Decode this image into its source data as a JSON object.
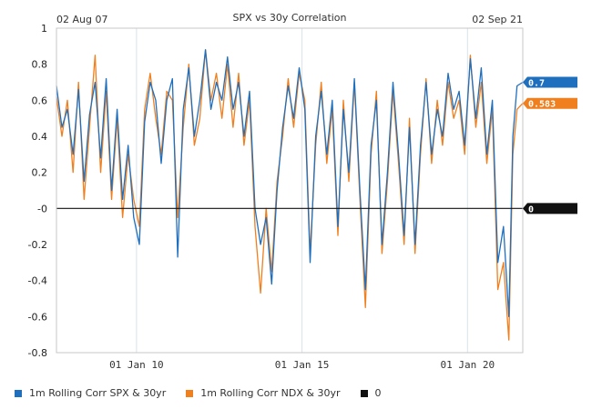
{
  "chart_data": {
    "type": "line",
    "title": "SPX vs 30y Correlation",
    "start_label": "02 Aug 07",
    "end_label": "02 Sep 21",
    "x_range": [
      "2007-08-02",
      "2021-09-02"
    ],
    "x_ticks": [
      {
        "date": "2010-01-01",
        "label": "01 Jan 10"
      },
      {
        "date": "2015-01-01",
        "label": "01 Jan 15"
      },
      {
        "date": "2020-01-01",
        "label": "01 Jan 20"
      }
    ],
    "y_ticks": [
      "1",
      "0.8",
      "0.6",
      "0.4",
      "0.2",
      "-0",
      "-0.2",
      "-0.4",
      "-0.6",
      "-0.8"
    ],
    "ylim": [
      -0.8,
      1.0
    ],
    "grid": "vertical at x ticks",
    "legend_position": "bottom",
    "colors": {
      "spx": "#1f6fbf",
      "ndx": "#f07f1e",
      "zero": "#111111"
    },
    "series": [
      {
        "name": "1m Rolling Corr SPX & 30yr",
        "color": "#1f6fbf",
        "last_label": "0.7",
        "points": [
          [
            "2007-08-02",
            0.68
          ],
          [
            "2007-10-01",
            0.45
          ],
          [
            "2007-12-01",
            0.55
          ],
          [
            "2008-02-01",
            0.3
          ],
          [
            "2008-04-01",
            0.66
          ],
          [
            "2008-06-01",
            0.15
          ],
          [
            "2008-08-01",
            0.52
          ],
          [
            "2008-10-01",
            0.7
          ],
          [
            "2008-12-01",
            0.28
          ],
          [
            "2009-02-01",
            0.72
          ],
          [
            "2009-04-01",
            0.1
          ],
          [
            "2009-06-01",
            0.55
          ],
          [
            "2009-08-01",
            0.05
          ],
          [
            "2009-10-01",
            0.35
          ],
          [
            "2009-12-01",
            -0.05
          ],
          [
            "2010-02-01",
            -0.2
          ],
          [
            "2010-04-01",
            0.48
          ],
          [
            "2010-06-01",
            0.7
          ],
          [
            "2010-08-01",
            0.6
          ],
          [
            "2010-10-01",
            0.25
          ],
          [
            "2010-12-01",
            0.6
          ],
          [
            "2011-02-01",
            0.72
          ],
          [
            "2011-04-01",
            -0.27
          ],
          [
            "2011-06-01",
            0.55
          ],
          [
            "2011-08-01",
            0.78
          ],
          [
            "2011-10-01",
            0.4
          ],
          [
            "2011-12-01",
            0.6
          ],
          [
            "2012-02-01",
            0.88
          ],
          [
            "2012-04-01",
            0.55
          ],
          [
            "2012-06-01",
            0.7
          ],
          [
            "2012-08-01",
            0.6
          ],
          [
            "2012-10-01",
            0.84
          ],
          [
            "2012-12-01",
            0.55
          ],
          [
            "2013-02-01",
            0.7
          ],
          [
            "2013-04-01",
            0.4
          ],
          [
            "2013-06-01",
            0.65
          ],
          [
            "2013-08-01",
            0.0
          ],
          [
            "2013-10-01",
            -0.2
          ],
          [
            "2013-12-01",
            -0.05
          ],
          [
            "2014-02-01",
            -0.42
          ],
          [
            "2014-04-01",
            0.1
          ],
          [
            "2014-06-01",
            0.45
          ],
          [
            "2014-08-01",
            0.68
          ],
          [
            "2014-10-01",
            0.5
          ],
          [
            "2014-12-01",
            0.78
          ],
          [
            "2015-02-01",
            0.55
          ],
          [
            "2015-04-01",
            -0.3
          ],
          [
            "2015-06-01",
            0.4
          ],
          [
            "2015-08-01",
            0.65
          ],
          [
            "2015-10-01",
            0.3
          ],
          [
            "2015-12-01",
            0.6
          ],
          [
            "2016-02-01",
            -0.1
          ],
          [
            "2016-04-01",
            0.55
          ],
          [
            "2016-06-01",
            0.2
          ],
          [
            "2016-08-01",
            0.72
          ],
          [
            "2016-10-01",
            0.1
          ],
          [
            "2016-12-01",
            -0.45
          ],
          [
            "2017-02-01",
            0.35
          ],
          [
            "2017-04-01",
            0.6
          ],
          [
            "2017-06-01",
            -0.2
          ],
          [
            "2017-08-01",
            0.2
          ],
          [
            "2017-10-01",
            0.7
          ],
          [
            "2017-12-01",
            0.3
          ],
          [
            "2018-02-01",
            -0.15
          ],
          [
            "2018-04-01",
            0.45
          ],
          [
            "2018-06-01",
            -0.2
          ],
          [
            "2018-08-01",
            0.35
          ],
          [
            "2018-10-01",
            0.7
          ],
          [
            "2018-12-01",
            0.3
          ],
          [
            "2019-02-01",
            0.55
          ],
          [
            "2019-04-01",
            0.4
          ],
          [
            "2019-06-01",
            0.75
          ],
          [
            "2019-08-01",
            0.55
          ],
          [
            "2019-10-01",
            0.65
          ],
          [
            "2019-12-01",
            0.35
          ],
          [
            "2020-02-01",
            0.83
          ],
          [
            "2020-04-01",
            0.5
          ],
          [
            "2020-06-01",
            0.78
          ],
          [
            "2020-08-01",
            0.3
          ],
          [
            "2020-10-01",
            0.6
          ],
          [
            "2020-12-01",
            -0.3
          ],
          [
            "2021-02-01",
            -0.1
          ],
          [
            "2021-04-01",
            -0.6
          ],
          [
            "2021-05-15",
            0.4
          ],
          [
            "2021-07-01",
            0.68
          ],
          [
            "2021-09-02",
            0.7
          ]
        ]
      },
      {
        "name": "1m Rolling Corr NDX & 30yr",
        "color": "#f07f1e",
        "last_label": "0.583",
        "points": [
          [
            "2007-08-02",
            0.62
          ],
          [
            "2007-10-01",
            0.4
          ],
          [
            "2007-12-01",
            0.6
          ],
          [
            "2008-02-01",
            0.2
          ],
          [
            "2008-04-01",
            0.7
          ],
          [
            "2008-06-01",
            0.05
          ],
          [
            "2008-08-01",
            0.45
          ],
          [
            "2008-10-01",
            0.85
          ],
          [
            "2008-12-01",
            0.2
          ],
          [
            "2009-02-01",
            0.65
          ],
          [
            "2009-04-01",
            0.05
          ],
          [
            "2009-06-01",
            0.5
          ],
          [
            "2009-08-01",
            -0.05
          ],
          [
            "2009-10-01",
            0.3
          ],
          [
            "2009-12-01",
            0.05
          ],
          [
            "2010-02-01",
            -0.1
          ],
          [
            "2010-04-01",
            0.55
          ],
          [
            "2010-06-01",
            0.75
          ],
          [
            "2010-08-01",
            0.5
          ],
          [
            "2010-10-01",
            0.3
          ],
          [
            "2010-12-01",
            0.65
          ],
          [
            "2011-02-01",
            0.6
          ],
          [
            "2011-04-01",
            -0.05
          ],
          [
            "2011-06-01",
            0.45
          ],
          [
            "2011-08-01",
            0.8
          ],
          [
            "2011-10-01",
            0.35
          ],
          [
            "2011-12-01",
            0.5
          ],
          [
            "2012-02-01",
            0.88
          ],
          [
            "2012-04-01",
            0.6
          ],
          [
            "2012-06-01",
            0.75
          ],
          [
            "2012-08-01",
            0.5
          ],
          [
            "2012-10-01",
            0.8
          ],
          [
            "2012-12-01",
            0.45
          ],
          [
            "2013-02-01",
            0.75
          ],
          [
            "2013-04-01",
            0.35
          ],
          [
            "2013-06-01",
            0.6
          ],
          [
            "2013-08-01",
            -0.1
          ],
          [
            "2013-10-01",
            -0.47
          ],
          [
            "2013-12-01",
            0.0
          ],
          [
            "2014-02-01",
            -0.35
          ],
          [
            "2014-04-01",
            0.15
          ],
          [
            "2014-06-01",
            0.4
          ],
          [
            "2014-08-01",
            0.72
          ],
          [
            "2014-10-01",
            0.45
          ],
          [
            "2014-12-01",
            0.75
          ],
          [
            "2015-02-01",
            0.6
          ],
          [
            "2015-04-01",
            -0.25
          ],
          [
            "2015-06-01",
            0.35
          ],
          [
            "2015-08-01",
            0.7
          ],
          [
            "2015-10-01",
            0.25
          ],
          [
            "2015-12-01",
            0.55
          ],
          [
            "2016-02-01",
            -0.15
          ],
          [
            "2016-04-01",
            0.6
          ],
          [
            "2016-06-01",
            0.15
          ],
          [
            "2016-08-01",
            0.7
          ],
          [
            "2016-10-01",
            0.05
          ],
          [
            "2016-12-01",
            -0.55
          ],
          [
            "2017-02-01",
            0.3
          ],
          [
            "2017-04-01",
            0.65
          ],
          [
            "2017-06-01",
            -0.25
          ],
          [
            "2017-08-01",
            0.15
          ],
          [
            "2017-10-01",
            0.65
          ],
          [
            "2017-12-01",
            0.25
          ],
          [
            "2018-02-01",
            -0.2
          ],
          [
            "2018-04-01",
            0.5
          ],
          [
            "2018-06-01",
            -0.25
          ],
          [
            "2018-08-01",
            0.3
          ],
          [
            "2018-10-01",
            0.72
          ],
          [
            "2018-12-01",
            0.25
          ],
          [
            "2019-02-01",
            0.6
          ],
          [
            "2019-04-01",
            0.35
          ],
          [
            "2019-06-01",
            0.7
          ],
          [
            "2019-08-01",
            0.5
          ],
          [
            "2019-10-01",
            0.6
          ],
          [
            "2019-12-01",
            0.3
          ],
          [
            "2020-02-01",
            0.85
          ],
          [
            "2020-04-01",
            0.45
          ],
          [
            "2020-06-01",
            0.7
          ],
          [
            "2020-08-01",
            0.25
          ],
          [
            "2020-10-01",
            0.55
          ],
          [
            "2020-12-01",
            -0.45
          ],
          [
            "2021-02-01",
            -0.3
          ],
          [
            "2021-04-01",
            -0.73
          ],
          [
            "2021-05-15",
            0.3
          ],
          [
            "2021-07-01",
            0.55
          ],
          [
            "2021-09-02",
            0.583
          ]
        ]
      },
      {
        "name": "0",
        "color": "#111111",
        "last_label": "0",
        "points": [
          [
            "2007-08-02",
            0
          ],
          [
            "2021-09-02",
            0
          ]
        ]
      }
    ]
  }
}
